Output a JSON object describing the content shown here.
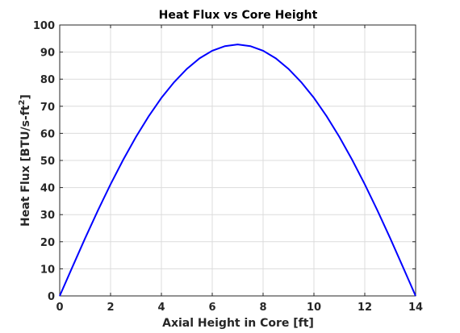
{
  "chart_data": {
    "type": "line",
    "title": "Heat Flux vs Core Height",
    "xlabel": "Axial Height in Core [ft]",
    "ylabel": {
      "main": "Heat Flux [BTU/s-ft",
      "superscript": "2",
      "close": "]"
    },
    "xlim": [
      0,
      14
    ],
    "ylim": [
      0,
      100
    ],
    "xticks": [
      0,
      2,
      4,
      6,
      8,
      10,
      12,
      14
    ],
    "yticks": [
      0,
      10,
      20,
      30,
      40,
      50,
      60,
      70,
      80,
      90,
      100
    ],
    "grid": true,
    "series": [
      {
        "color": "#0000ff",
        "x": [
          0,
          0.5,
          1,
          1.5,
          2,
          2.5,
          3,
          3.5,
          4,
          4.5,
          5,
          5.5,
          6,
          6.5,
          7,
          7.5,
          8,
          8.5,
          9,
          9.5,
          10,
          10.5,
          11,
          11.5,
          12,
          12.5,
          13,
          13.5,
          14
        ],
        "y": [
          0,
          10.7,
          21.3,
          31.5,
          41.2,
          50.3,
          58.7,
          66.3,
          73.1,
          78.9,
          83.8,
          87.7,
          90.5,
          92.2,
          92.8,
          92.2,
          90.5,
          87.7,
          83.8,
          78.9,
          73.1,
          66.3,
          58.7,
          50.3,
          41.2,
          31.5,
          21.3,
          10.7,
          0
        ]
      }
    ]
  }
}
